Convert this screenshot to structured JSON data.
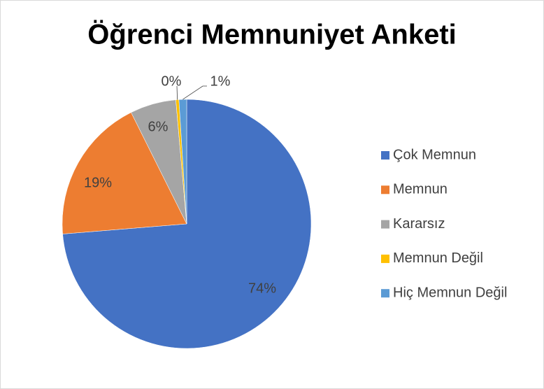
{
  "chart_data": {
    "type": "pie",
    "title": "Öğrenci Memnuniyet Anketi",
    "categories": [
      "Çok Memnun",
      "Memnun",
      "Kararsız",
      "Memnun Değil",
      "Hiç Memnun Değil"
    ],
    "values": [
      74,
      19,
      6,
      0.4,
      1
    ],
    "value_labels": [
      "74%",
      "19%",
      "6%",
      "0%",
      "1%"
    ],
    "colors": [
      "#4472c4",
      "#ed7d31",
      "#a5a5a5",
      "#ffc000",
      "#5b9bd5"
    ],
    "legend": "right"
  }
}
